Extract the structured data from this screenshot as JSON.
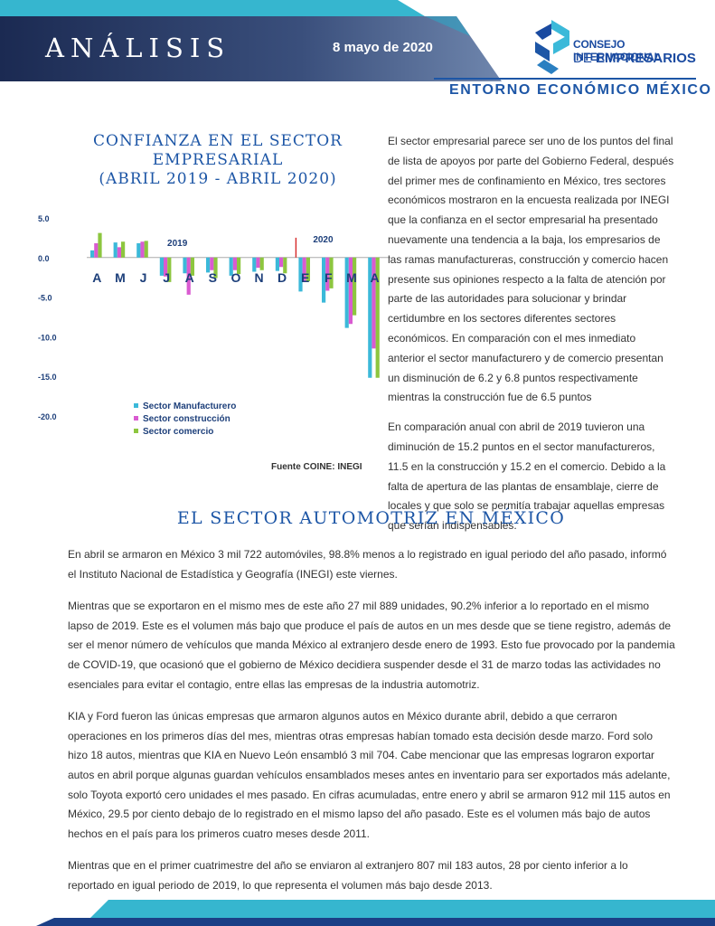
{
  "header": {
    "title": "ANÁLISIS",
    "date": "8 mayo de 2020",
    "logo_line1": "CONSEJO INTERNACIONAL",
    "logo_line2_prefix": "DE ",
    "logo_line2_bold": "EMPRESARIOS",
    "subtitle": "ENTORNO ECONÓMICO MÉXICO"
  },
  "chart_section": {
    "title_lines": [
      "CONFIANZA EN EL SECTOR",
      "EMPRESARIAL",
      "(ABRIL 2019 - ABRIL 2020)"
    ],
    "source": "Fuente COINE: INEGI"
  },
  "chart_data": {
    "type": "bar",
    "categories": [
      "A",
      "M",
      "J",
      "J",
      "A",
      "S",
      "O",
      "N",
      "D",
      "E",
      "F",
      "M",
      "A"
    ],
    "year_labels": [
      "2019",
      "2020"
    ],
    "yticks": [
      "5.0",
      "0.0",
      "-5.0",
      "-10.0",
      "-15.0",
      "-20.0"
    ],
    "ylim": [
      -20,
      5
    ],
    "legend_position": "bottom-left",
    "series": [
      {
        "name": "Sector Manufacturero",
        "color": "#3bb9d9",
        "values": [
          0.9,
          1.9,
          1.8,
          -2.3,
          -2.0,
          -1.9,
          -2.3,
          -1.8,
          -1.7,
          -4.3,
          -5.7,
          -8.9,
          -15.2
        ]
      },
      {
        "name": "Sector construcción",
        "color": "#d95bd1",
        "values": [
          1.8,
          1.3,
          2.0,
          -2.4,
          -4.7,
          -1.6,
          -1.6,
          -1.3,
          -1.2,
          -3.1,
          -4.2,
          -8.4,
          -11.5
        ]
      },
      {
        "name": "Sector comercio",
        "color": "#8dc63f",
        "values": [
          3.1,
          2.0,
          2.1,
          -3.1,
          -2.3,
          -2.6,
          -2.1,
          -1.6,
          -2.0,
          -3.0,
          -3.9,
          -7.3,
          -15.2
        ]
      }
    ],
    "marker": {
      "color": "#d62828",
      "between": [
        "D",
        "E"
      ],
      "top": 2.5,
      "bottom": 0
    }
  },
  "right_column": {
    "p1": "El sector empresarial parece ser uno de los puntos del final de lista de apoyos por parte del Gobierno Federal, después del primer mes de confinamiento en México, tres sectores económicos mostraron en la encuesta realizada por INEGI que la confianza en el sector empresarial ha presentado nuevamente una tendencia a la baja, los empresarios de las ramas manufactureras, construcción y comercio hacen presente sus opiniones respecto a la falta de atención por parte de las autoridades para solucionar y brindar certidumbre en los sectores diferentes sectores económicos. En comparación con el mes inmediato anterior el sector manufacturero y de comercio presentan un disminución de 6.2 y 6.8 puntos respectivamente mientras la construcción fue de 6.5 puntos",
    "p2": "En comparación anual con abril de 2019 tuvieron una diminución de 15.2 puntos en el sector manufactureros, 11.5 en la construcción y 15.2 en el comercio. Debido a la falta de apertura de las plantas de ensamblaje, cierre de locales y que solo se permitía trabajar aquellas empresas que serían indispensables."
  },
  "auto_section": {
    "title": "EL SECTOR AUTOMOTRIZ EN MÉXICO",
    "p1": "En abril se armaron en México 3 mil 722 automóviles, 98.8% menos a lo registrado en igual periodo del año pasado, informó el Instituto Nacional de Estadística y Geografía (INEGI) este viernes.",
    "p2": "Mientras que se exportaron en el mismo mes de este año 27 mil 889 unidades, 90.2% inferior a lo reportado en el mismo lapso de 2019. Este es el volumen más bajo que produce el país de autos en un mes desde que se tiene registro, además de ser el menor número de vehículos que manda México al extranjero desde enero de 1993. Esto fue provocado por la pandemia de COVID-19, que ocasionó que el gobierno de México decidiera suspender desde el 31 de marzo todas las actividades no esenciales para evitar el contagio, entre ellas las empresas de la industria automotriz.",
    "p3": "KIA y Ford fueron las únicas empresas que armaron algunos autos en México durante abril, debido a que cerraron operaciones en los primeros días del mes, mientras otras empresas habían tomado esta decisión desde marzo. Ford solo hizo 18 autos, mientras que KIA en Nuevo León ensambló 3 mil 704. Cabe mencionar que las empresas lograron exportar autos en abril porque algunas guardan vehículos ensamblados meses antes en inventario para ser exportados más adelante, solo Toyota exportó cero unidades el mes pasado. En cifras acumuladas, entre enero y abril se armaron 912 mil 115 autos en México, 29.5 por ciento debajo de lo registrado en el mismo lapso del año pasado. Este es el volumen más bajo de autos hechos en el país para los primeros cuatro meses desde 2011.",
    "p4": "Mientras que en el primer cuatrimestre del año se enviaron al extranjero 807 mil 183 autos, 28 por ciento inferior a lo reportado en igual periodo de 2019, lo que representa el volumen más bajo desde 2013."
  }
}
